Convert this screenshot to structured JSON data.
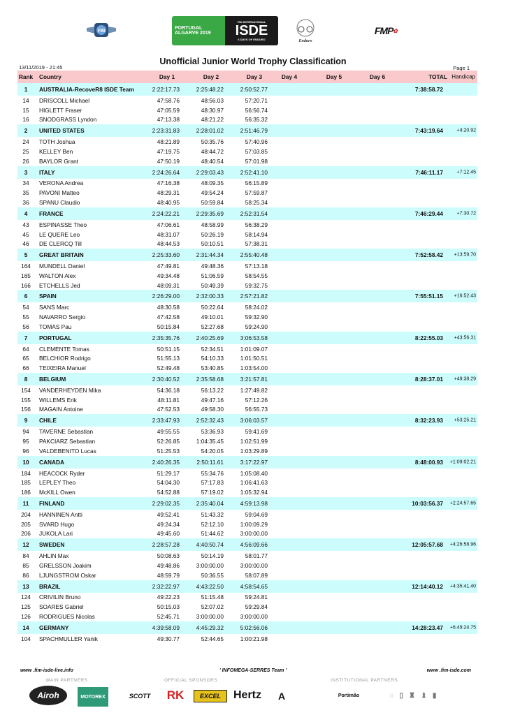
{
  "header": {
    "logos": [
      "FIM",
      "PORTUGAL ALGARVE 2019 FIM INTERNATIONAL ISDE 6 DAYS OF ENDURO",
      "FIM Enduro Vintage Trophy",
      "FMP"
    ],
    "title": "Unofficial Junior World Trophy Classification",
    "date": "13/11/2019 - 21:45",
    "page": "Page 1"
  },
  "columns": [
    "Rank",
    "Country",
    "Day 1",
    "Day 2",
    "Day 3",
    "Day 4",
    "Day 5",
    "Day 6",
    "TOTAL",
    "Handicap"
  ],
  "colors": {
    "header_bg": "#f9c9cc",
    "team_bg": "#cdfcfd"
  },
  "teams": [
    {
      "rank": "1",
      "country": "AUSTRALIA-RecoveR8 ISDE Team",
      "d1": "2:22:17.73",
      "d2": "2:25:48.22",
      "d3": "2:50:52.77",
      "total": "7:38:58.72",
      "handicap": "",
      "riders": [
        {
          "no": "14",
          "name": "DRISCOLL Michael",
          "d1": "47:58.76",
          "d2": "48:56.03",
          "d3": "57:20.71"
        },
        {
          "no": "15",
          "name": "HIGLETT Fraser",
          "d1": "47:05.59",
          "d2": "48:30.97",
          "d3": "56:56.74"
        },
        {
          "no": "16",
          "name": "SNODGRASS Lyndon",
          "d1": "47:13.38",
          "d2": "48:21.22",
          "d3": "56:35.32"
        }
      ]
    },
    {
      "rank": "2",
      "country": "UNITED STATES",
      "d1": "2:23:31.83",
      "d2": "2:28:01.02",
      "d3": "2:51:46.79",
      "total": "7:43:19.64",
      "handicap": "+4:20.92",
      "riders": [
        {
          "no": "24",
          "name": "TOTH Joshua",
          "d1": "48:21.89",
          "d2": "50:35.76",
          "d3": "57:40.96"
        },
        {
          "no": "25",
          "name": "KELLEY Ben",
          "d1": "47:19.75",
          "d2": "48:44.72",
          "d3": "57:03.85"
        },
        {
          "no": "26",
          "name": "BAYLOR Grant",
          "d1": "47:50.19",
          "d2": "48:40.54",
          "d3": "57:01.98"
        }
      ]
    },
    {
      "rank": "3",
      "country": "ITALY",
      "d1": "2:24:26.64",
      "d2": "2:29:03.43",
      "d3": "2:52:41.10",
      "total": "7:46:11.17",
      "handicap": "+7:12.45",
      "riders": [
        {
          "no": "34",
          "name": "VERONA Andrea",
          "d1": "47:16.38",
          "d2": "48:09.35",
          "d3": "56:15.89"
        },
        {
          "no": "35",
          "name": "PAVONI Matteo",
          "d1": "48:29.31",
          "d2": "49:54.24",
          "d3": "57:59.87"
        },
        {
          "no": "36",
          "name": "SPANU Claudio",
          "d1": "48:40.95",
          "d2": "50:59.84",
          "d3": "58:25.34"
        }
      ]
    },
    {
      "rank": "4",
      "country": "FRANCE",
      "d1": "2:24:22.21",
      "d2": "2:29:35.69",
      "d3": "2:52:31.54",
      "total": "7:46:29.44",
      "handicap": "+7:30.72",
      "riders": [
        {
          "no": "43",
          "name": "ESPINASSE Theo",
          "d1": "47:06.61",
          "d2": "48:58.99",
          "d3": "56:38.29"
        },
        {
          "no": "45",
          "name": "LE QUERE Leo",
          "d1": "48:31.07",
          "d2": "50:26.19",
          "d3": "58:14.94"
        },
        {
          "no": "46",
          "name": "DE CLERCQ Till",
          "d1": "48:44.53",
          "d2": "50:10.51",
          "d3": "57:38.31"
        }
      ]
    },
    {
      "rank": "5",
      "country": "GREAT BRITAIN",
      "d1": "2:25:33.60",
      "d2": "2:31:44.34",
      "d3": "2:55:40.48",
      "total": "7:52:58.42",
      "handicap": "+13:59.70",
      "riders": [
        {
          "no": "164",
          "name": "MUNDELL Daniel",
          "d1": "47:49.81",
          "d2": "49:48.36",
          "d3": "57:13.18"
        },
        {
          "no": "165",
          "name": "WALTON Alex",
          "d1": "49:34.48",
          "d2": "51:06.59",
          "d3": "58:54.55"
        },
        {
          "no": "166",
          "name": "ETCHELLS Jed",
          "d1": "48:09.31",
          "d2": "50:49.39",
          "d3": "59:32.75"
        }
      ]
    },
    {
      "rank": "6",
      "country": "SPAIN",
      "d1": "2:26:29.00",
      "d2": "2:32:00.33",
      "d3": "2:57:21.82",
      "total": "7:55:51.15",
      "handicap": "+16:52.43",
      "riders": [
        {
          "no": "54",
          "name": "SANS Marc",
          "d1": "48:30.58",
          "d2": "50:22.64",
          "d3": "58:24.02"
        },
        {
          "no": "55",
          "name": "NAVARRO Sergio",
          "d1": "47:42.58",
          "d2": "49:10.01",
          "d3": "59:32.90"
        },
        {
          "no": "56",
          "name": "TOMAS Pau",
          "d1": "50:15.84",
          "d2": "52:27.68",
          "d3": "59:24.90"
        }
      ]
    },
    {
      "rank": "7",
      "country": "PORTUGAL",
      "d1": "2:35:35.76",
      "d2": "2:40:25.69",
      "d3": "3:06:53.58",
      "total": "8:22:55.03",
      "handicap": "+43:56.31",
      "riders": [
        {
          "no": "64",
          "name": "CLEMENTE Tomas",
          "d1": "50:51.15",
          "d2": "52:34.51",
          "d3": "1:01:09.07"
        },
        {
          "no": "65",
          "name": "BELCHIOR Rodrigo",
          "d1": "51:55.13",
          "d2": "54:10.33",
          "d3": "1:01:50.51"
        },
        {
          "no": "66",
          "name": "TEIXEIRA Manuel",
          "d1": "52:49.48",
          "d2": "53:40.85",
          "d3": "1:03:54.00"
        }
      ]
    },
    {
      "rank": "8",
      "country": "BELGIUM",
      "d1": "2:30:40.52",
      "d2": "2:35:58.68",
      "d3": "3:21:57.81",
      "total": "8:28:37.01",
      "handicap": "+49:38.29",
      "riders": [
        {
          "no": "154",
          "name": "VANDERHEYDEN Mika",
          "d1": "54:36.18",
          "d2": "56:13.22",
          "d3": "1:27:49.82"
        },
        {
          "no": "155",
          "name": "WILLEMS Erik",
          "d1": "48:11.81",
          "d2": "49:47.16",
          "d3": "57:12.26"
        },
        {
          "no": "156",
          "name": "MAGAIN Antoine",
          "d1": "47:52.53",
          "d2": "49:58.30",
          "d3": "56:55.73"
        }
      ]
    },
    {
      "rank": "9",
      "country": "CHILE",
      "d1": "2:33:47.93",
      "d2": "2:52:32.43",
      "d3": "3:06:03.57",
      "total": "8:32:23.93",
      "handicap": "+53:25.21",
      "riders": [
        {
          "no": "94",
          "name": "TAVERNE Sebastian",
          "d1": "49:55.55",
          "d2": "53:36.93",
          "d3": "59:41.69"
        },
        {
          "no": "95",
          "name": "PAKCIARZ Sebastian",
          "d1": "52:26.85",
          "d2": "1:04:35.45",
          "d3": "1:02:51.99"
        },
        {
          "no": "96",
          "name": "VALDEBENITO Lucas",
          "d1": "51:25.53",
          "d2": "54:20.05",
          "d3": "1:03:29.89"
        }
      ]
    },
    {
      "rank": "10",
      "country": "CANADA",
      "d1": "2:40:26.35",
      "d2": "2:50:11.61",
      "d3": "3:17:22.97",
      "total": "8:48:00.93",
      "handicap": "+1:09:02.21",
      "riders": [
        {
          "no": "184",
          "name": "HEACOCK Ryder",
          "d1": "51:29.17",
          "d2": "55:34.76",
          "d3": "1:05:08.40"
        },
        {
          "no": "185",
          "name": "LEPLEY Theo",
          "d1": "54:04.30",
          "d2": "57:17.83",
          "d3": "1:06:41.63"
        },
        {
          "no": "186",
          "name": "McKILL Owen",
          "d1": "54:52.88",
          "d2": "57:19.02",
          "d3": "1:05:32.94"
        }
      ]
    },
    {
      "rank": "11",
      "country": "FINLAND",
      "d1": "2:29:02.35",
      "d2": "2:35:40.04",
      "d3": "4:59:13.98",
      "total": "10:03:56.37",
      "handicap": "+2:24:57.65",
      "riders": [
        {
          "no": "204",
          "name": "HANNINEN Antti",
          "d1": "49:52.41",
          "d2": "51:43.32",
          "d3": "59:04.69"
        },
        {
          "no": "205",
          "name": "SVARD Hugo",
          "d1": "49:24.34",
          "d2": "52:12.10",
          "d3": "1:00:09.29"
        },
        {
          "no": "206",
          "name": "JUKOLA Lari",
          "d1": "49:45.60",
          "d2": "51:44.62",
          "d3": "3:00:00.00"
        }
      ]
    },
    {
      "rank": "12",
      "country": "SWEDEN",
      "d1": "2:28:57.28",
      "d2": "4:40:50.74",
      "d3": "4:56:09.66",
      "total": "12:05:57.68",
      "handicap": "+4:26:58.96",
      "riders": [
        {
          "no": "84",
          "name": "AHLIN Max",
          "d1": "50:08.63",
          "d2": "50:14.19",
          "d3": "58:01.77"
        },
        {
          "no": "85",
          "name": "GRELSSON Joakim",
          "d1": "49:48.86",
          "d2": "3:00:00.00",
          "d3": "3:00:00.00"
        },
        {
          "no": "86",
          "name": "LJUNGSTROM Oskar",
          "d1": "48:59.79",
          "d2": "50:36.55",
          "d3": "58:07.89"
        }
      ]
    },
    {
      "rank": "13",
      "country": "BRAZIL",
      "d1": "2:32:22.97",
      "d2": "4:43:22.50",
      "d3": "4:58:54.65",
      "total": "12:14:40.12",
      "handicap": "+4:35:41.40",
      "riders": [
        {
          "no": "124",
          "name": "CRIVILIN Bruno",
          "d1": "49:22.23",
          "d2": "51:15.48",
          "d3": "59:24.81"
        },
        {
          "no": "125",
          "name": "SOARES Gabriel",
          "d1": "50:15.03",
          "d2": "52:07.02",
          "d3": "59:29.84"
        },
        {
          "no": "126",
          "name": "RODRIGUES Nicolas",
          "d1": "52:45.71",
          "d2": "3:00:00.00",
          "d3": "3:00:00.00"
        }
      ]
    },
    {
      "rank": "14",
      "country": "GERMANY",
      "d1": "4:39:58.09",
      "d2": "4:45:29.32",
      "d3": "5:02:56.06",
      "total": "14:28:23.47",
      "handicap": "+6:49:24.75",
      "riders": [
        {
          "no": "104",
          "name": "SPACHMULLER Yanik",
          "d1": "49:30.77",
          "d2": "52:44.65",
          "d3": "1:00:21.98"
        }
      ]
    }
  ],
  "footer": {
    "left": "www .fim-isde-live.info",
    "center": "' INFOMEGA-SERRES Team '",
    "right": "www .fim-isde.com",
    "main_partners_label": "MAIN PARTNERS",
    "official_sponsors_label": "OFFICIAL SPONSORS",
    "institutional_partners_label": "INSTITUTIONAL PARTNERS",
    "main_partners": [
      "Airoh",
      "MOTOREX"
    ],
    "official_sponsors": [
      "SCOTT",
      "RK",
      "EXCEL",
      "Hertz"
    ],
    "institutional_partners": [
      "Portimão"
    ]
  }
}
